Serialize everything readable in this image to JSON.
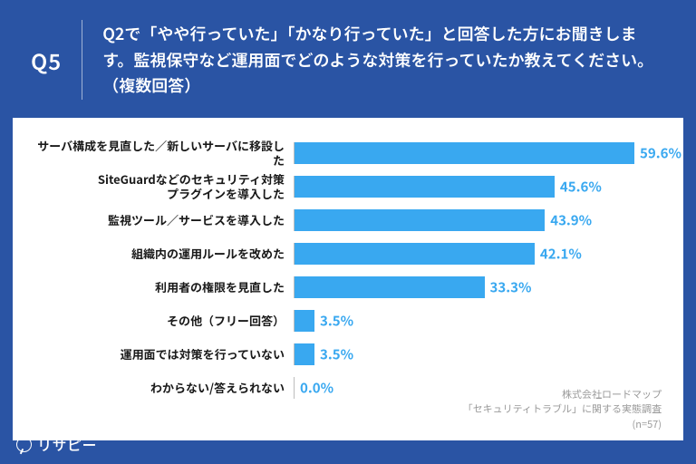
{
  "header": {
    "qnum": "Q5",
    "text": "Q2で「やや行っていた」「かなり行っていた」と回答した方にお聞きします。監視保守など運用面でどのような対策を行っていたか教えてください。（複数回答）"
  },
  "chart": {
    "type": "bar-horizontal",
    "max": 65,
    "bar_color": "#39a8f0",
    "value_color": "#39a8f0",
    "axis_color": "#bdbdbd",
    "background": "#ffffff",
    "label_color": "#1a1a1a",
    "label_fontsize": 13,
    "value_fontsize": 15,
    "items": [
      {
        "label": "サーバ構成を見直した／新しいサーバに移設した",
        "value": 59.6,
        "display": "59.6%"
      },
      {
        "label": "SiteGuardなどのセキュリティ対策\nプラグインを導入した",
        "value": 45.6,
        "display": "45.6%"
      },
      {
        "label": "監視ツール／サービスを導入した",
        "value": 43.9,
        "display": "43.9%"
      },
      {
        "label": "組織内の運用ルールを改めた",
        "value": 42.1,
        "display": "42.1%"
      },
      {
        "label": "利用者の権限を見直した",
        "value": 33.3,
        "display": "33.3%"
      },
      {
        "label": "その他（フリー回答）",
        "value": 3.5,
        "display": "3.5%"
      },
      {
        "label": "運用面では対策を行っていない",
        "value": 3.5,
        "display": "3.5%"
      },
      {
        "label": "わからない/答えられない",
        "value": 0.0,
        "display": "0.0%"
      }
    ]
  },
  "footnote": {
    "line1": "株式会社ロードマップ",
    "line2": "「セキュリティトラブル」に関する実態調査",
    "line3": "(n=57)"
  },
  "brand": {
    "name": "リサピー"
  },
  "colors": {
    "frame_bg": "#2a54a4",
    "header_text": "#ffffff"
  }
}
